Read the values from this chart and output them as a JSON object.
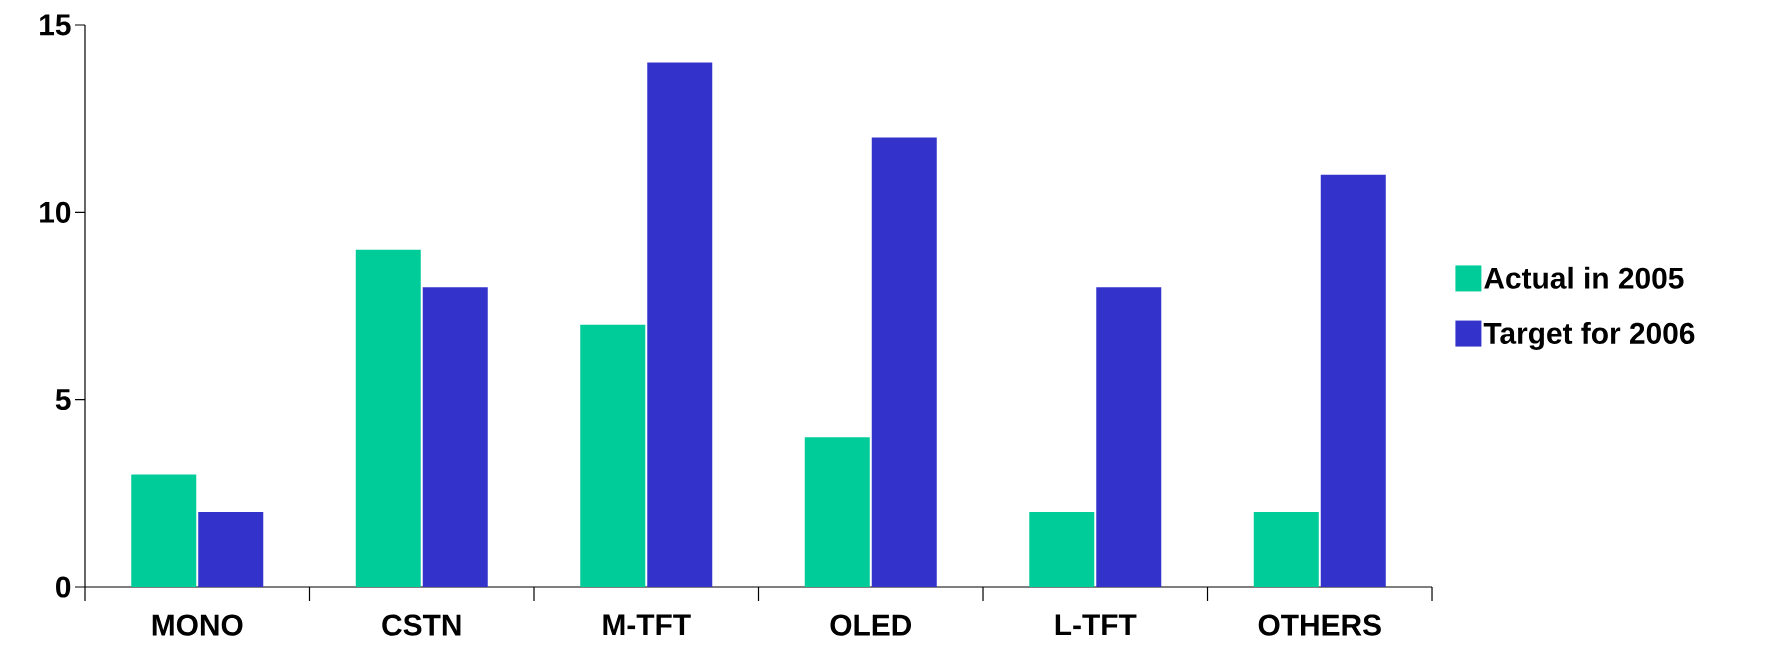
{
  "chart_data": {
    "type": "bar",
    "categories": [
      "MONO",
      "CSTN",
      "M-TFT",
      "OLED",
      "L-TFT",
      "OTHERS"
    ],
    "series": [
      {
        "name": "Actual in 2005",
        "color": "#00cc99",
        "values": [
          3,
          9,
          7,
          4,
          2,
          2
        ]
      },
      {
        "name": "Target for 2006",
        "color": "#3333cc",
        "values": [
          2,
          8,
          14,
          12,
          8,
          11
        ]
      }
    ],
    "ylim": [
      0,
      15
    ],
    "yticks": [
      0,
      5,
      10,
      15
    ],
    "legend": "right"
  }
}
